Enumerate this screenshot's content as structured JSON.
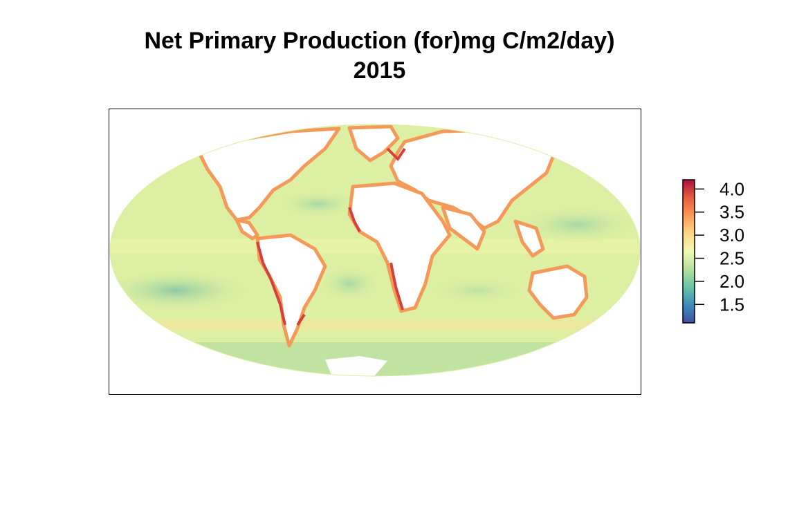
{
  "title": {
    "line1": "Net Primary Production (for)mg C/m2/day)",
    "line2": "2015"
  },
  "map": {
    "projection": "mollweide",
    "ocean_base_color": "#dcefa2",
    "land_color": "#ffffff"
  },
  "legend": {
    "ticks": [
      "4.0",
      "3.5",
      "3.0",
      "2.5",
      "2.0",
      "1.5"
    ],
    "range": [
      1.1,
      4.2
    ],
    "palette": [
      "#3f4fa0",
      "#3c8bbb",
      "#6cc3a5",
      "#b7e1a1",
      "#f2f8b4",
      "#fed98b",
      "#fc9a57",
      "#e45a3f",
      "#a8123d"
    ]
  },
  "chart_data": {
    "type": "heatmap",
    "title": "Net Primary Production (for)mg C/m2/day) 2015",
    "value_range": [
      1.1,
      4.2
    ],
    "legend_ticks": [
      4.0,
      3.5,
      3.0,
      2.5,
      2.0,
      1.5
    ],
    "legend_placement": "right"
  }
}
